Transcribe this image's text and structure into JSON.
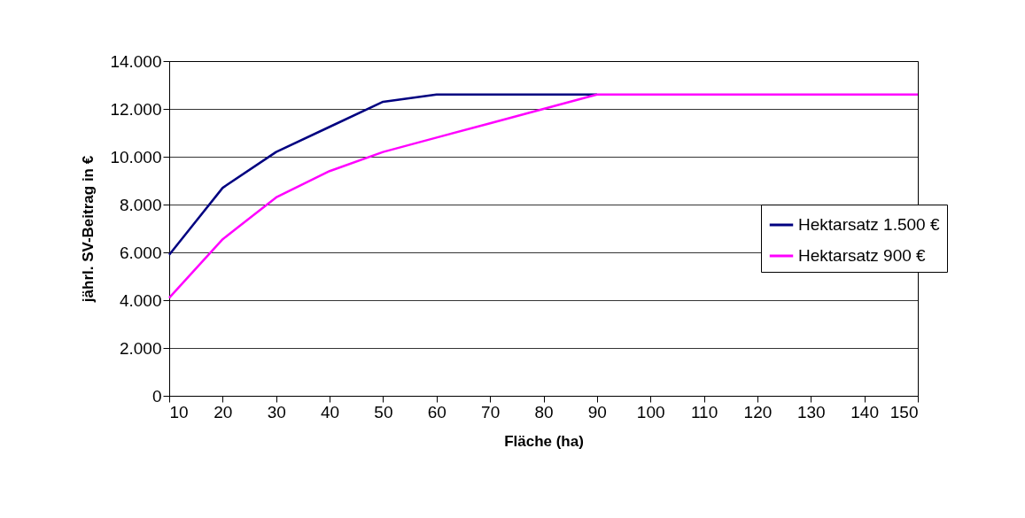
{
  "chart_data": {
    "type": "line",
    "xlabel": "Fläche (ha)",
    "ylabel": "jährl. SV-Beitrag in €",
    "x": [
      10,
      20,
      30,
      40,
      50,
      60,
      70,
      80,
      90,
      100,
      110,
      120,
      130,
      140,
      150
    ],
    "series": [
      {
        "name": "Hektarsatz 1.500 €",
        "color": "#000080",
        "values": [
          5900,
          8700,
          10200,
          11250,
          12300,
          12600,
          12600,
          12600,
          12600,
          null,
          null,
          null,
          null,
          null,
          null
        ]
      },
      {
        "name": "Hektarsatz 900 €",
        "color": "#ff00ff",
        "values": [
          4100,
          6550,
          8300,
          9400,
          10200,
          10800,
          11400,
          12000,
          12600,
          12600,
          12600,
          12600,
          12600,
          12600,
          12600
        ]
      }
    ],
    "xlim": [
      10,
      150
    ],
    "xticks": [
      10,
      20,
      30,
      40,
      50,
      60,
      70,
      80,
      90,
      100,
      110,
      120,
      130,
      140,
      150
    ],
    "ylim": [
      0,
      14000
    ],
    "yticks": [
      0,
      {
        "value": 2000,
        "label": "2.000"
      },
      {
        "value": 4000,
        "label": "4.000"
      },
      {
        "value": 6000,
        "label": "6.000"
      },
      {
        "value": 8000,
        "label": "8.000"
      },
      {
        "value": 10000,
        "label": "10.000"
      },
      {
        "value": 12000,
        "label": "12.000"
      },
      {
        "value": 14000,
        "label": "14.000"
      }
    ],
    "grid": "y",
    "legend": "right",
    "marker": "none",
    "line_style": "solid"
  }
}
